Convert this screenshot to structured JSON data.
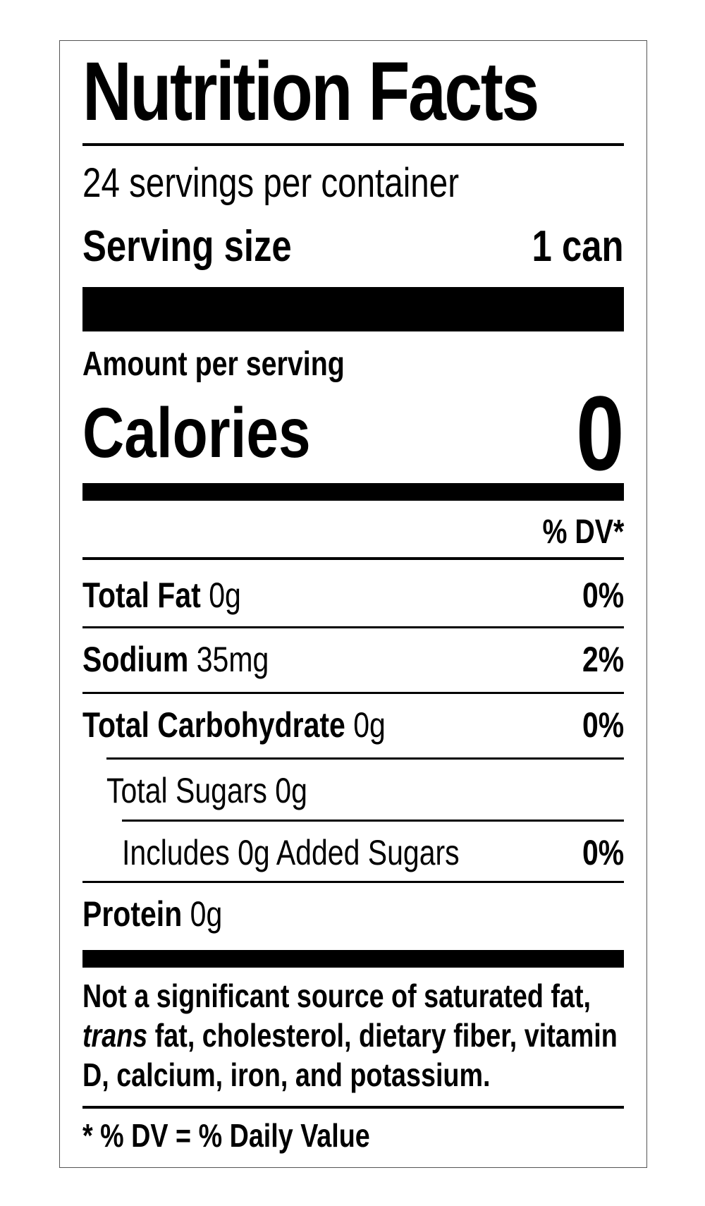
{
  "title": "Nutrition Facts",
  "servings": "24 servings per container",
  "serving_size": {
    "label": "Serving size",
    "value": "1 can"
  },
  "amount_per_serving": "Amount per serving",
  "calories": {
    "label": "Calories",
    "value": "0"
  },
  "dv_header": "% DV*",
  "rows": [
    {
      "name": "Total Fat",
      "amount": "0g",
      "dv": "0%"
    },
    {
      "name": "Sodium",
      "amount": "35mg",
      "dv": "2%"
    },
    {
      "name": "Total Carbohydrate",
      "amount": "0g",
      "dv": "0%"
    },
    {
      "name": "Total Sugars 0g"
    },
    {
      "name": "Includes 0g Added Sugars",
      "dv": "0%"
    },
    {
      "name": "Protein",
      "amount": "0g"
    }
  ],
  "note": {
    "line1": "Not a significant source of saturated fat,",
    "italic": "trans",
    "rest": "fat, cholesterol, dietary fiber, vitamin D, calcium, iron, and potassium."
  },
  "footer": "* % DV = % Daily Value"
}
